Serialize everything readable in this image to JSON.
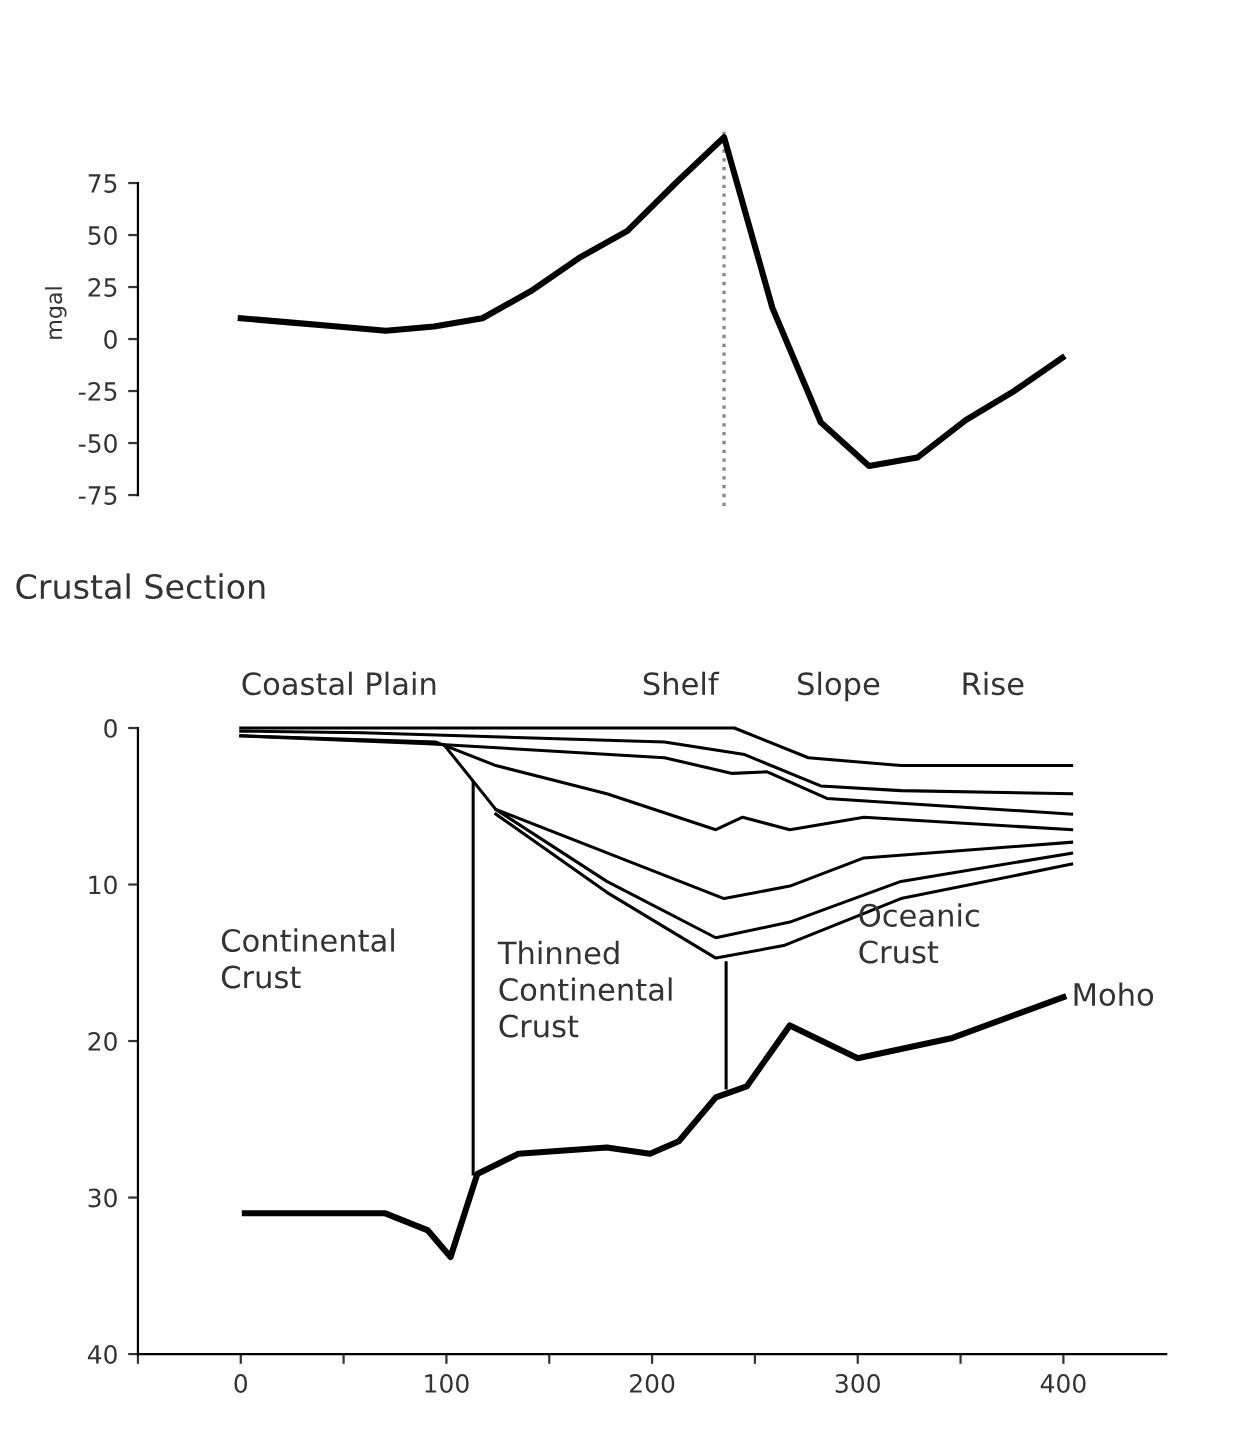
{
  "chart_data": [
    {
      "type": "line",
      "ylabel": "mgal",
      "categories": [
        null,
        null,
        null,
        null,
        null,
        null,
        null,
        null,
        null,
        null,
        null,
        null,
        null,
        null,
        null,
        null,
        null,
        null
      ],
      "ylim": [
        -75,
        100
      ],
      "yticks": [
        -75,
        -50,
        -25,
        0,
        25,
        50,
        75
      ],
      "tick_labels": "y",
      "grid": false,
      "legend": false,
      "marker": "none",
      "line_style": "solid",
      "series": [
        {
          "color": "#000000",
          "values": [
            10,
            8,
            6,
            4,
            6,
            10,
            23,
            39,
            52,
            75,
            97,
            15,
            -40,
            -61,
            -57,
            -39,
            -25,
            -9
          ]
        }
      ]
    },
    {
      "type": "line",
      "title": "Crustal Section",
      "xlim": [
        -50,
        450
      ],
      "ylim": [
        40,
        0
      ],
      "xticks": [
        {
          "value": -50,
          "label": null
        },
        0,
        {
          "value": 50,
          "label": null
        },
        100,
        {
          "value": 150,
          "label": null
        },
        200,
        {
          "value": 250,
          "label": null
        },
        300,
        {
          "value": 350,
          "label": null
        },
        400
      ],
      "yticks": [
        0,
        10,
        20,
        30,
        40
      ],
      "grid": false,
      "legend": false,
      "marker": "none",
      "line_style": "solid",
      "annotations": [
        "Coastal Plain",
        "Shelf",
        "Slope",
        "Rise",
        "Continental\nCrust",
        "Thinned\nContinental\nCrust",
        "Oceanic\nCrust",
        {
          "text": "Moho",
          "x": 400,
          "y": 17.2
        }
      ],
      "series": [
        {
          "color": "#000000",
          "x": [
            0,
            240,
            276,
            321,
            404
          ],
          "values": [
            0,
            0,
            1.9,
            2.4,
            2.4
          ]
        },
        {
          "color": "#000000",
          "x": [
            0,
            59,
            206,
            245,
            282,
            321,
            404
          ],
          "values": [
            0.2,
            0.3,
            0.9,
            1.7,
            3.7,
            4.0,
            4.2
          ]
        },
        {
          "color": "#000000",
          "x": [
            0,
            91,
            206,
            239,
            256,
            285,
            404
          ],
          "values": [
            0.5,
            1.0,
            1.9,
            2.9,
            2.8,
            4.5,
            5.5
          ]
        },
        {
          "color": "#000000",
          "x": [
            0,
            95,
            124,
            178,
            231,
            244,
            267,
            303,
            404
          ],
          "values": [
            0.5,
            0.9,
            2.4,
            4.2,
            6.5,
            5.7,
            6.5,
            5.7,
            6.5
          ]
        },
        {
          "color": "#000000",
          "x": [
            124,
            235,
            267,
            303,
            404
          ],
          "values": [
            5.2,
            10.9,
            10.1,
            8.3,
            7.3
          ]
        },
        {
          "color": "#000000",
          "x": [
            99,
            124,
            178,
            231,
            267,
            321,
            404
          ],
          "values": [
            1.1,
            5.2,
            9.8,
            13.4,
            12.4,
            9.8,
            8.0
          ]
        },
        {
          "color": "#000000",
          "x": [
            124,
            178,
            231,
            264,
            321,
            404
          ],
          "values": [
            5.5,
            10.5,
            14.7,
            13.9,
            10.9,
            8.7
          ]
        },
        {
          "color": "#000000",
          "x": [
            113,
            113
          ],
          "values": [
            3.5,
            28.5
          ]
        },
        {
          "color": "#000000",
          "x": [
            236,
            236
          ],
          "values": [
            15.0,
            23.0
          ]
        },
        {
          "color": "#000000",
          "x": [
            2,
            70,
            91,
            102,
            115,
            135,
            178,
            199,
            213,
            231,
            246,
            267,
            300,
            346,
            400
          ],
          "values": [
            31.0,
            31.0,
            32.1,
            33.8,
            28.5,
            27.2,
            26.8,
            27.2,
            26.4,
            23.6,
            22.9,
            19.0,
            21.1,
            19.8,
            17.2
          ]
        }
      ]
    }
  ]
}
